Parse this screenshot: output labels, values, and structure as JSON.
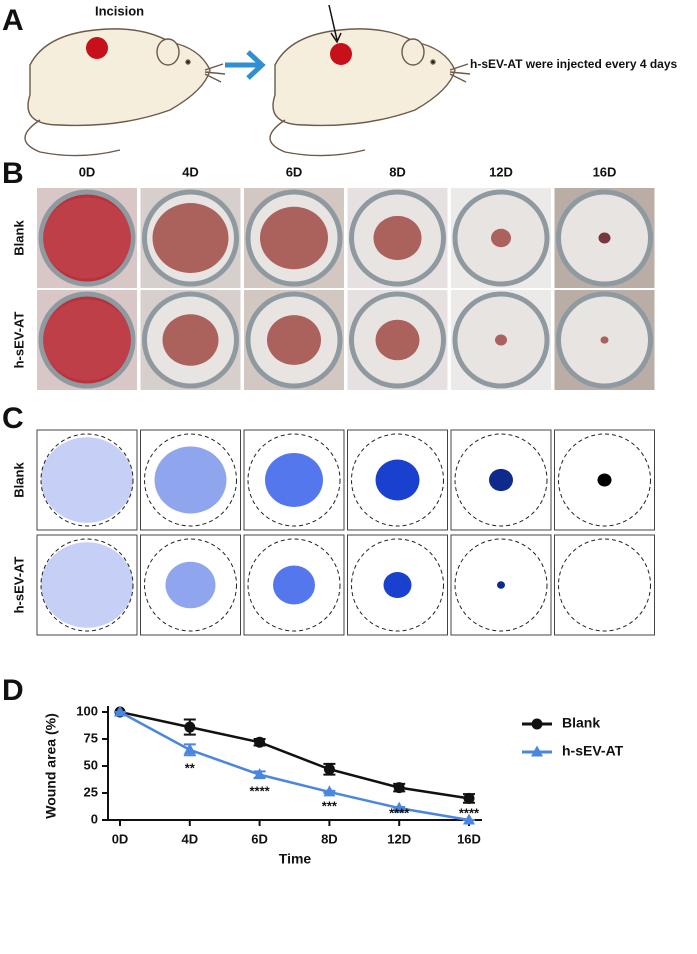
{
  "panel_a": {
    "label": "A",
    "incision": "Incision",
    "note": "h-sEV-AT were injected every 4 days"
  },
  "panel_b": {
    "label": "B",
    "columns": [
      "0D",
      "4D",
      "6D",
      "8D",
      "12D",
      "16D"
    ],
    "rows": [
      "Blank",
      "h-sEV-AT"
    ]
  },
  "panel_c": {
    "label": "C",
    "rows": [
      "Blank",
      "h-sEV-AT"
    ]
  },
  "chart_data": {
    "type": "line",
    "label": "D",
    "x_label": "Time",
    "y_label": "Wound area (%)",
    "categories": [
      "0D",
      "4D",
      "6D",
      "8D",
      "12D",
      "16D"
    ],
    "series": [
      {
        "name": "Blank",
        "color": "#111111",
        "marker": "circle",
        "values": [
          100,
          86,
          72,
          47,
          30,
          20
        ],
        "errors": [
          0,
          7,
          3,
          5,
          3.5,
          4
        ]
      },
      {
        "name": "h-sEV-AT",
        "color": "#4a86e0",
        "marker": "triangle",
        "values": [
          100,
          65,
          42,
          26,
          11,
          0
        ],
        "errors": [
          0,
          5,
          3,
          1,
          1,
          0
        ]
      }
    ],
    "annotations": [
      {
        "category": "4D",
        "label": "**"
      },
      {
        "category": "6D",
        "label": "****"
      },
      {
        "category": "8D",
        "label": "***"
      },
      {
        "category": "12D",
        "label": "****"
      },
      {
        "category": "16D",
        "label": "****"
      }
    ],
    "ylim": [
      0,
      100
    ],
    "yticks": [
      0,
      25,
      50,
      75,
      100
    ],
    "legend": "outside-right"
  }
}
